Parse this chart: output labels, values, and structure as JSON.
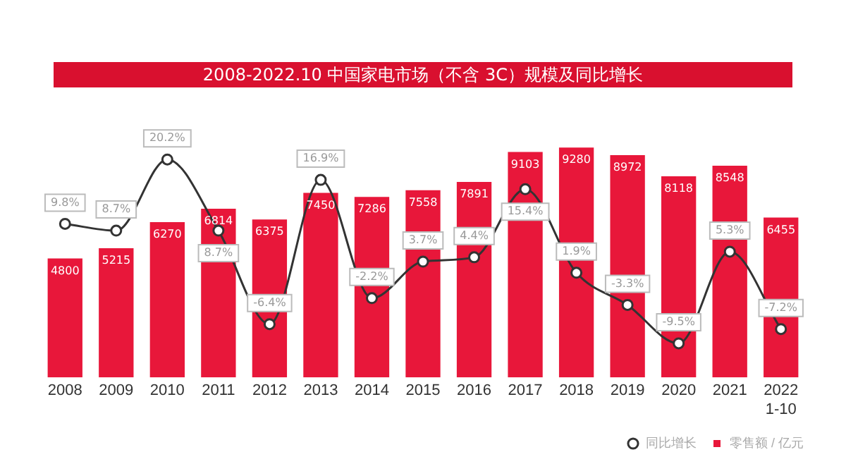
{
  "chart_data": {
    "type": "bar",
    "title": "2008-2022.10 中国家电市场（不含 3C）规模及同比增长",
    "categories": [
      "2008",
      "2009",
      "2010",
      "2011",
      "2012",
      "2013",
      "2014",
      "2015",
      "2016",
      "2017",
      "2018",
      "2019",
      "2020",
      "2021",
      "2022\n1-10"
    ],
    "series": [
      {
        "name": "零售额 / 亿元",
        "color": "#e8173a",
        "values": [
          4800,
          5215,
          6270,
          6814,
          6375,
          7450,
          7286,
          7558,
          7891,
          9103,
          9280,
          8972,
          8118,
          8548,
          6455
        ]
      },
      {
        "name": "同比增长",
        "type": "line",
        "axis": "y2",
        "color": "#333333",
        "values": [
          9.8,
          8.7,
          20.2,
          8.7,
          -6.4,
          16.9,
          -2.2,
          3.7,
          4.4,
          15.4,
          1.9,
          -3.3,
          -9.5,
          5.3,
          -7.2
        ],
        "value_labels": [
          "9.8%",
          "8.7%",
          "20.2%",
          "8.7%",
          "-6.4%",
          "16.9%",
          "-2.2%",
          "3.7%",
          "4.4%",
          "15.4%",
          "1.9%",
          "-3.3%",
          "-9.5%",
          "5.3%",
          "-7.2%"
        ]
      }
    ],
    "tick_labels": "x",
    "grid": false,
    "legend": "bottom right",
    "marker": "circle",
    "line_style": "solid",
    "data_labels": true
  }
}
